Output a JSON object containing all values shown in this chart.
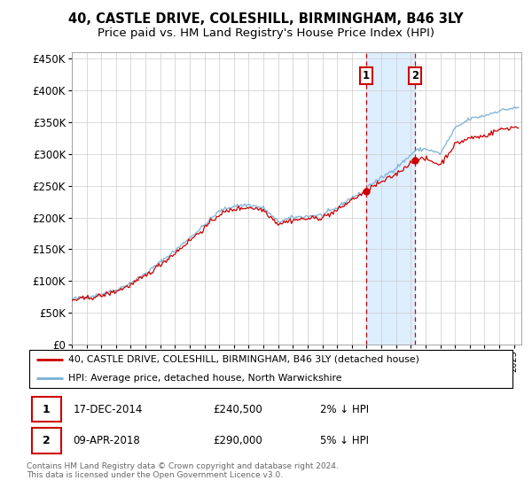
{
  "title": "40, CASTLE DRIVE, COLESHILL, BIRMINGHAM, B46 3LY",
  "subtitle": "Price paid vs. HM Land Registry's House Price Index (HPI)",
  "title_fontsize": 10.5,
  "subtitle_fontsize": 9.5,
  "ylabel_ticks": [
    "£0",
    "£50K",
    "£100K",
    "£150K",
    "£200K",
    "£250K",
    "£300K",
    "£350K",
    "£400K",
    "£450K"
  ],
  "ytick_values": [
    0,
    50000,
    100000,
    150000,
    200000,
    250000,
    300000,
    350000,
    400000,
    450000
  ],
  "ylim": [
    0,
    460000
  ],
  "xlim_start": 1995.0,
  "xlim_end": 2025.5,
  "sale1_date": 2014.96,
  "sale1_price": 240500,
  "sale2_date": 2018.27,
  "sale2_price": 290000,
  "hpi_line_color": "#7ab0d4",
  "price_line_color": "#cc0000",
  "shade_color": "#ddeeff",
  "legend_label1": "40, CASTLE DRIVE, COLESHILL, BIRMINGHAM, B46 3LY (detached house)",
  "legend_label2": "HPI: Average price, detached house, North Warwickshire",
  "note1_date": "17-DEC-2014",
  "note1_price": "£240,500",
  "note1_pct": "2% ↓ HPI",
  "note2_date": "09-APR-2018",
  "note2_price": "£290,000",
  "note2_pct": "5% ↓ HPI",
  "footer": "Contains HM Land Registry data © Crown copyright and database right 2024.\nThis data is licensed under the Open Government Licence v3.0.",
  "background_color": "#ffffff",
  "grid_color": "#cccccc"
}
